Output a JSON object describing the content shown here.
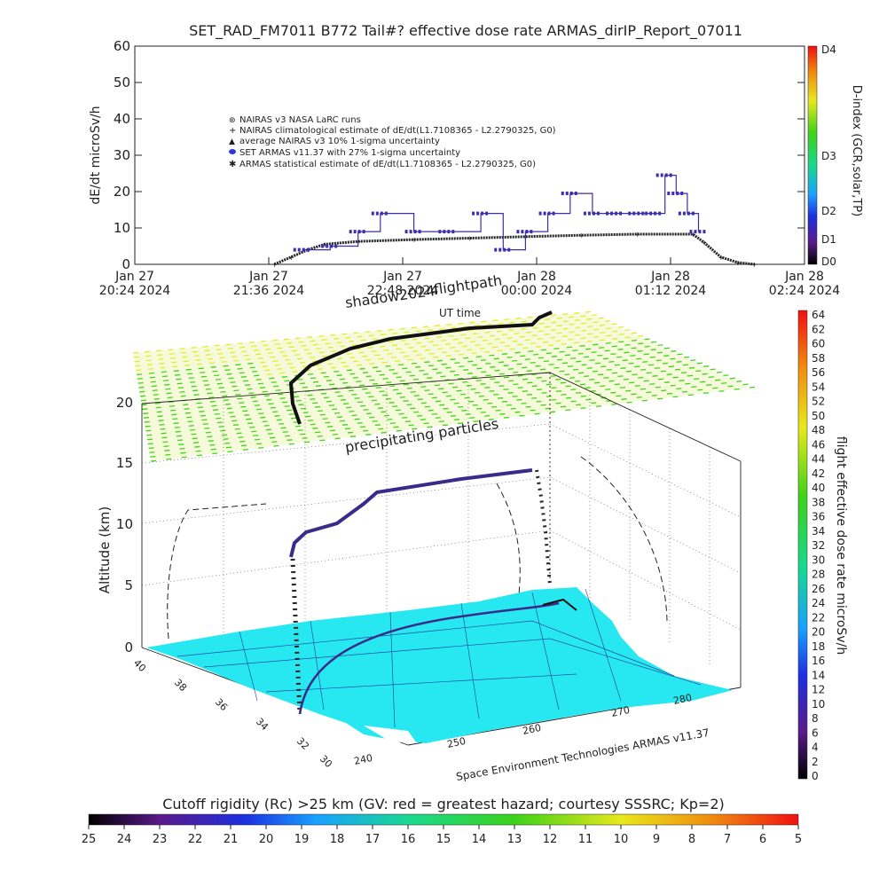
{
  "title": "SET_RAD_FM7011  B772 Tail#? effective dose rate ARMAS_dirIP_Report_07011",
  "top_chart": {
    "ylabel": "dE/dt microSv/h",
    "yticks": [
      "60",
      "50",
      "40",
      "30",
      "20",
      "10",
      "0"
    ],
    "xticks": [
      {
        "l1": "Jan 27",
        "l2": "20:24 2024"
      },
      {
        "l1": "Jan 27",
        "l2": "21:36 2024"
      },
      {
        "l1": "Jan 27",
        "l2": "22:48 2024"
      },
      {
        "l1": "Jan 28",
        "l2": "00:00 2024"
      },
      {
        "l1": "Jan 28",
        "l2": "01:12 2024"
      },
      {
        "l1": "Jan 28",
        "l2": "02:24 2024"
      }
    ],
    "xlabel": "UT time",
    "legend": [
      "NAIRAS v3 NASA LaRC runs",
      "NAIRAS climatological estimate of dE/dt(L1.7108365 - L2.2790325, G0)",
      "average NAIRAS v3 10% 1-sigma uncertainty",
      "SET ARMAS v11.37 with 27% 1-sigma uncertainty",
      "ARMAS statistical estimate of dE/dt(L1.7108365 - L2.2790325, G0)"
    ],
    "dindex_label": "D-index (GCR,solar,TP)",
    "dindex_ticks": [
      "D4",
      "D3",
      "D2",
      "D1",
      "D0"
    ]
  },
  "chart_data": [
    {
      "type": "line",
      "title": "SET_RAD_FM7011  B772 Tail#? effective dose rate ARMAS_dirIP_Report_07011",
      "xlabel": "UT time",
      "ylabel": "dE/dt microSv/h",
      "ylim": [
        0,
        60
      ],
      "xlim": [
        "Jan 27 20:24 2024",
        "Jan 28 02:24 2024"
      ],
      "x_unit": "UT hours after Jan 27 20:24 2024",
      "series": [
        {
          "name": "NAIRAS climatological estimate of dE/dt(L1.7108365 - L2.2790325, G0)",
          "x": [
            1.25,
            1.4,
            1.55,
            1.7,
            2.0,
            2.5,
            3.0,
            3.5,
            4.0,
            4.5,
            5.0,
            5.1,
            5.25,
            5.4,
            5.55
          ],
          "y": [
            0,
            2,
            4,
            5.5,
            6.3,
            6.8,
            7.2,
            7.6,
            8,
            8.3,
            8.3,
            6,
            2,
            0.5,
            0
          ]
        },
        {
          "name": "SET ARMAS v11.37 with 27% 1-sigma uncertainty",
          "x": [
            1.5,
            1.75,
            2.0,
            2.2,
            2.5,
            2.8,
            3.1,
            3.3,
            3.5,
            3.7,
            3.9,
            4.1,
            4.3,
            4.5,
            4.65,
            4.75,
            4.85,
            4.95,
            5.05
          ],
          "y": [
            4,
            5,
            9,
            14,
            9,
            9,
            14,
            4,
            9,
            14,
            19.5,
            14,
            14,
            14,
            14,
            24.5,
            19.5,
            14,
            9
          ]
        }
      ]
    },
    {
      "type": "scatter",
      "title": "precipitating particles",
      "zlabel": "Altitude (km)",
      "zlim": [
        0,
        20
      ],
      "lat_ticks": [
        "40",
        "38",
        "36",
        "34",
        "32",
        "30"
      ],
      "lon_ticks": [
        "240",
        "250",
        "260",
        "270",
        "280"
      ],
      "colorbar_label": "flight effective dose rate microSv/h",
      "colorbar_range": [
        0,
        64
      ]
    }
  ],
  "globe": {
    "shadow_label": "shadow2024",
    "flightpath_label": "flightpath",
    "precip_label": "precipitating particles",
    "zlabel": "Altitude (km)",
    "zticks": [
      "20",
      "15",
      "10",
      "5",
      "0"
    ],
    "lat_ticks": [
      "40",
      "38",
      "36",
      "34",
      "32",
      "30"
    ],
    "lon_ticks": [
      "240",
      "250",
      "260",
      "270",
      "280"
    ],
    "credit": "Space Environment Technologies ARMAS v11.37",
    "cb_label": "flight effective dose rate microSv/h",
    "cb_ticks": [
      "64",
      "62",
      "60",
      "58",
      "56",
      "54",
      "52",
      "50",
      "48",
      "46",
      "44",
      "42",
      "40",
      "38",
      "36",
      "34",
      "32",
      "30",
      "28",
      "26",
      "24",
      "22",
      "20",
      "18",
      "16",
      "14",
      "12",
      "10",
      "8",
      "6",
      "4",
      "2",
      "0"
    ]
  },
  "bottom_bar": {
    "label": "Cutoff rigidity (Rc) >25 km (GV: red = greatest hazard; courtesy SSSRC; Kp=2)",
    "ticks": [
      "25",
      "24",
      "23",
      "22",
      "21",
      "20",
      "19",
      "18",
      "17",
      "16",
      "15",
      "14",
      "13",
      "12",
      "11",
      "10",
      "9",
      "8",
      "7",
      "6",
      "5"
    ]
  },
  "colors": {
    "map_fill": "#27e8f0",
    "precip_green": "#44d21a",
    "precip_yellow": "#e6ea2e",
    "flight": "#3a2a8a",
    "armas": "#3b2fb0"
  }
}
